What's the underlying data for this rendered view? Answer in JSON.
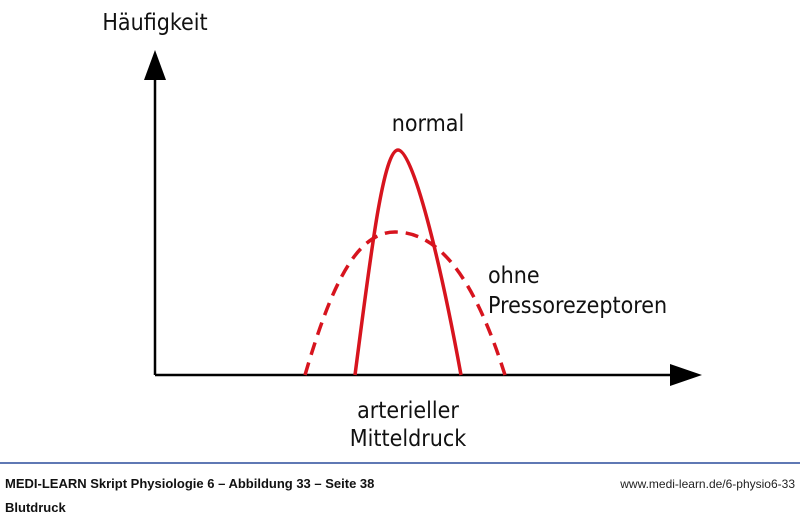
{
  "diagram": {
    "y_axis_label": "Häufigkeit",
    "x_axis_label_line1": "arterieller",
    "x_axis_label_line2": "Mitteldruck",
    "curve_normal_label": "normal",
    "curve_dashed_label_line1": "ohne",
    "curve_dashed_label_line2": "Pressorezeptoren"
  },
  "footer": {
    "source": "MEDI-LEARN Skript Physiologie 6 – Abbildung 33 – Seite 38",
    "topic": "Blutdruck",
    "url": "www.medi-learn.de/6-physio6-33"
  }
}
